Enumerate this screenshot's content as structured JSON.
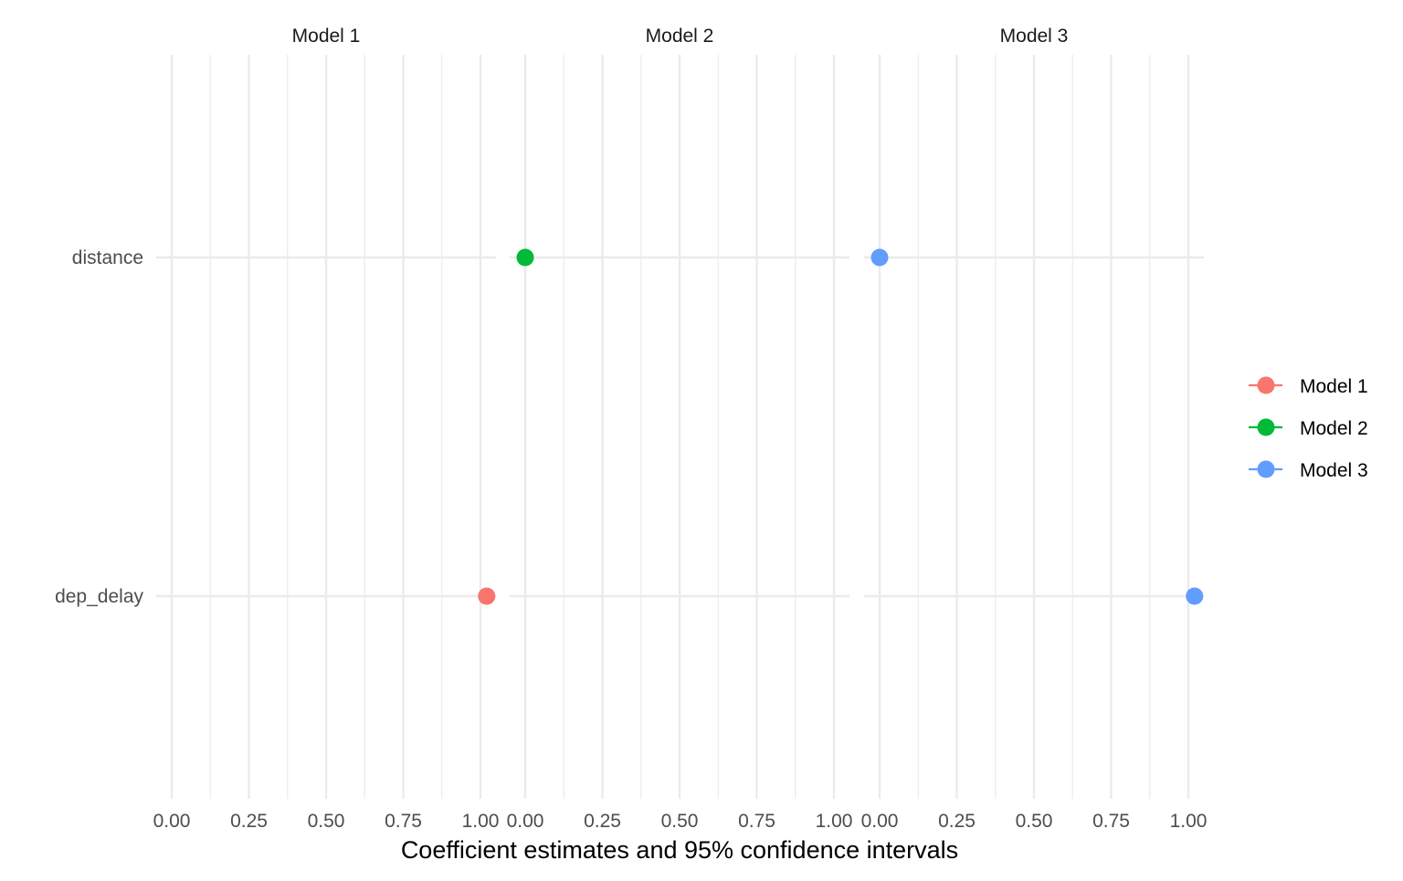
{
  "chart_data": {
    "type": "scatter",
    "xlabel": "Coefficient estimates and 95% confidence intervals",
    "ylabel": "",
    "terms": [
      "distance",
      "dep_delay"
    ],
    "xlim": [
      0,
      1
    ],
    "x_ticks": [
      "0.00",
      "0.25",
      "0.50",
      "0.75",
      "1.00"
    ],
    "legend_position": "right",
    "grid": true,
    "panels": [
      {
        "name": "Model 1",
        "color": "#F8766D",
        "points": [
          {
            "term": "dep_delay",
            "estimate": 1.02
          }
        ]
      },
      {
        "name": "Model 2",
        "color": "#00BA38",
        "points": [
          {
            "term": "distance",
            "estimate": 0.0
          }
        ]
      },
      {
        "name": "Model 3",
        "color": "#619CFF",
        "points": [
          {
            "term": "distance",
            "estimate": 0.0
          },
          {
            "term": "dep_delay",
            "estimate": 1.02
          }
        ]
      }
    ],
    "legend": [
      {
        "name": "Model 1",
        "color": "#F8766D"
      },
      {
        "name": "Model 2",
        "color": "#00BA38"
      },
      {
        "name": "Model 3",
        "color": "#619CFF"
      }
    ]
  }
}
